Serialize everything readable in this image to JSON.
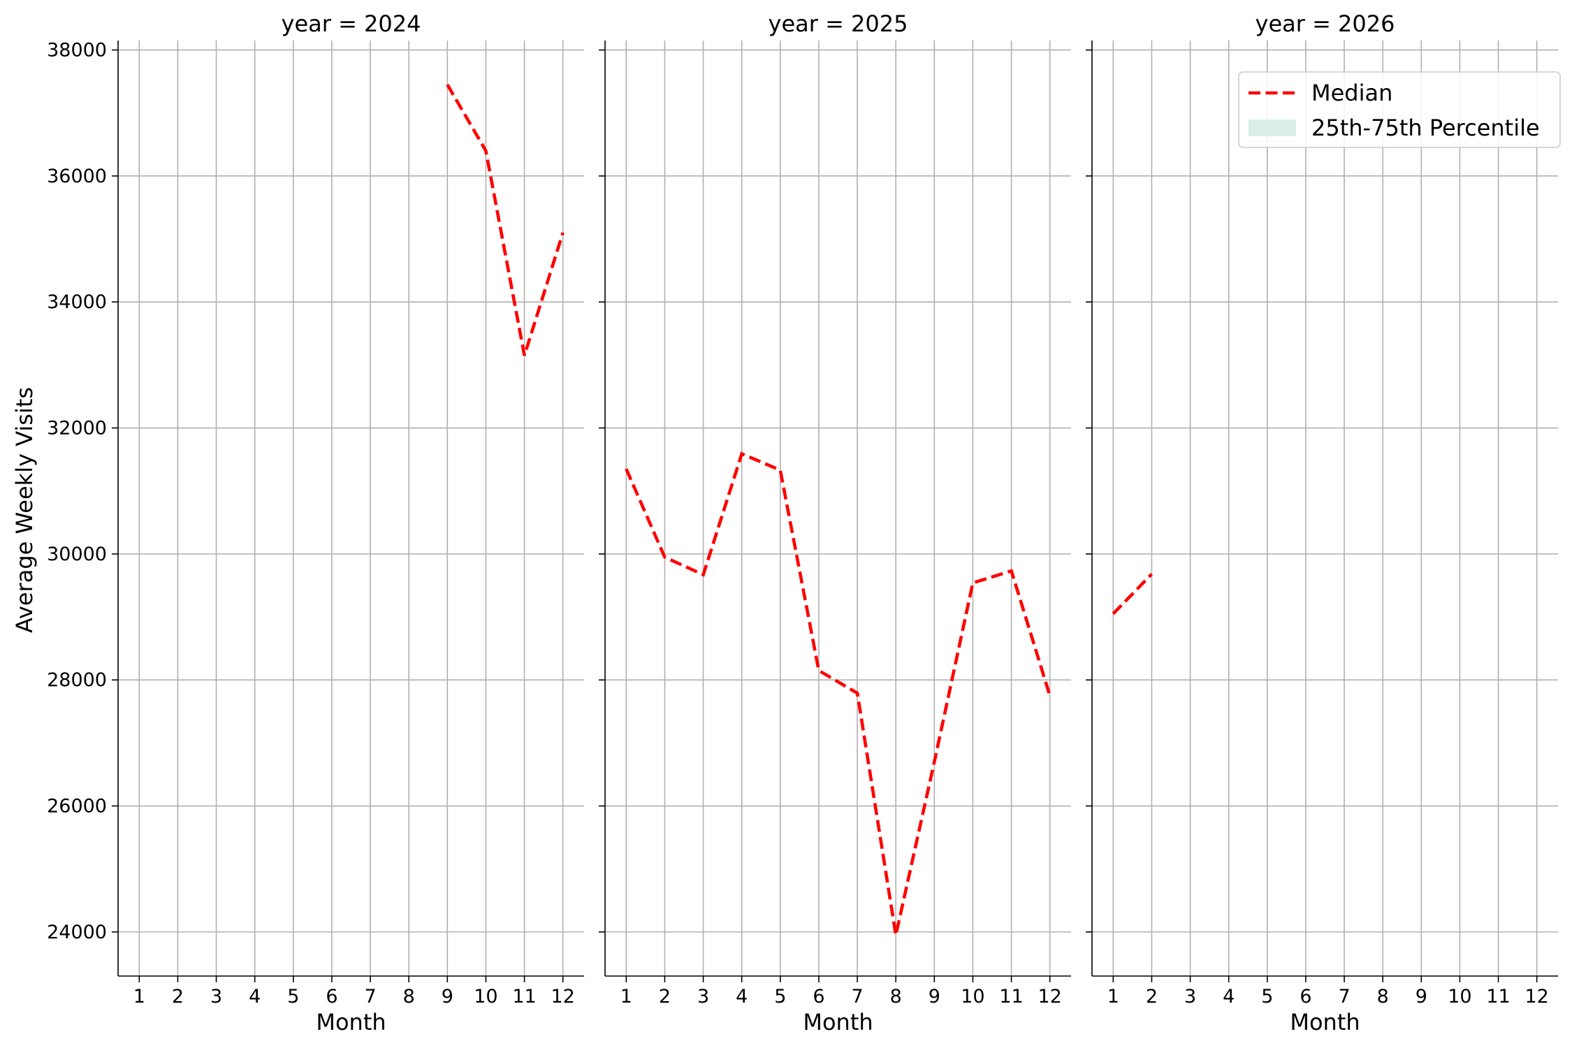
{
  "chart_data": {
    "type": "line",
    "ylabel": "Average Weekly Visits",
    "xlabel": "Month",
    "x_ticks": [
      1,
      2,
      3,
      4,
      5,
      6,
      7,
      8,
      9,
      10,
      11,
      12
    ],
    "y_ticks": [
      24000,
      26000,
      28000,
      30000,
      32000,
      34000,
      36000,
      38000
    ],
    "ylim": [
      23300,
      38150
    ],
    "xlim": [
      0.45,
      12.55
    ],
    "grid": true,
    "legend": {
      "placement": "upper right of last panel",
      "entries": [
        {
          "label": "Median",
          "color": "#ff0000",
          "style": "dashed-line"
        },
        {
          "label": "25th-75th Percentile",
          "color": "#d9efe8",
          "style": "patch"
        }
      ]
    },
    "panels": [
      {
        "title": "year = 2024",
        "series": [
          {
            "name": "Median",
            "x": [
              9,
              10,
              11,
              12
            ],
            "y": [
              37450,
              36400,
              33150,
              35100
            ]
          }
        ]
      },
      {
        "title": "year = 2025",
        "series": [
          {
            "name": "Median",
            "x": [
              1,
              2,
              3,
              4,
              5,
              6,
              7,
              8,
              9,
              10,
              11,
              12
            ],
            "y": [
              31350,
              29950,
              29670,
              31590,
              31330,
              28150,
              27790,
              23950,
              26700,
              29540,
              29730,
              27750
            ]
          }
        ]
      },
      {
        "title": "year = 2026",
        "series": [
          {
            "name": "Median",
            "x": [
              1,
              2
            ],
            "y": [
              29050,
              29680
            ]
          }
        ]
      }
    ]
  },
  "colors": {
    "median": "#ff0000",
    "percentile_band": "#d9efe8",
    "grid": "#b0b0b0",
    "axis": "#000000"
  }
}
